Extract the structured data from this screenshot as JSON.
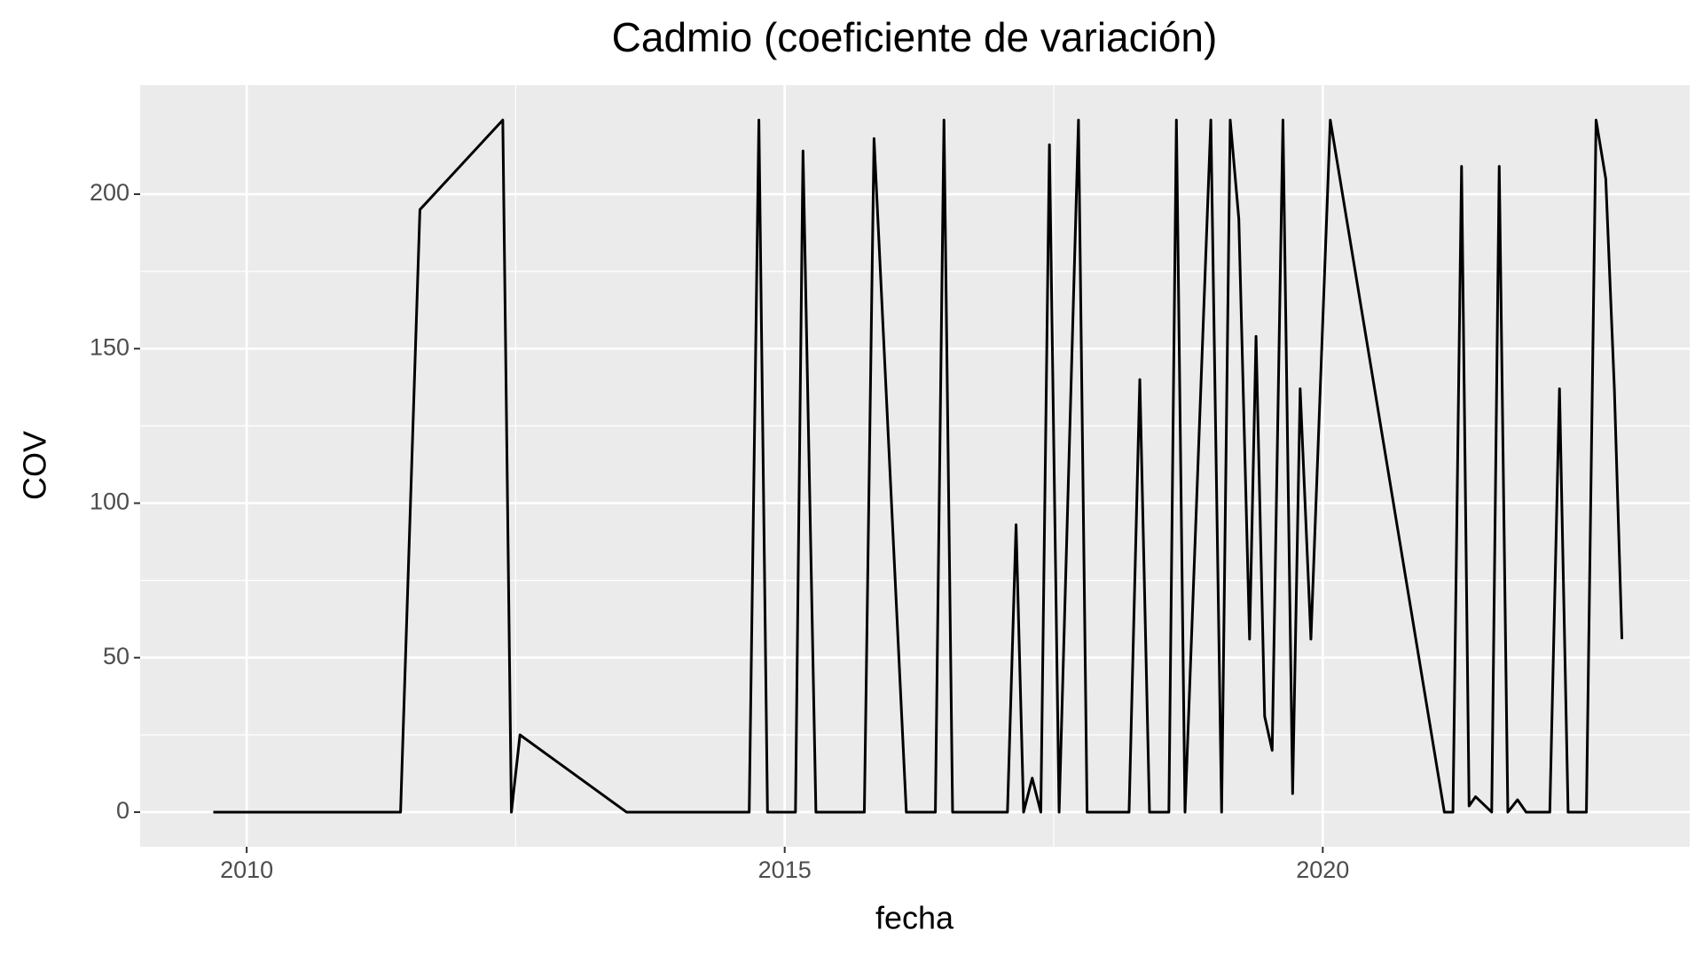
{
  "chart_data": {
    "type": "line",
    "title": "Cadmio (coeficiente de variación)",
    "x_label": "fecha",
    "y_label": "COV",
    "x": [
      2009.69,
      2011.43,
      2011.61,
      2012.38,
      2012.46,
      2012.54,
      2013.53,
      2014.67,
      2014.76,
      2014.84,
      2015.1,
      2015.17,
      2015.29,
      2015.74,
      2015.83,
      2016.13,
      2016.4,
      2016.48,
      2016.56,
      2017.07,
      2017.15,
      2017.22,
      2017.3,
      2017.38,
      2017.46,
      2017.55,
      2017.73,
      2017.81,
      2018.2,
      2018.3,
      2018.39,
      2018.57,
      2018.64,
      2018.72,
      2018.96,
      2019.06,
      2019.14,
      2019.22,
      2019.32,
      2019.38,
      2019.46,
      2019.53,
      2019.63,
      2019.72,
      2019.79,
      2019.89,
      2020.07,
      2021.13,
      2021.21,
      2021.29,
      2021.36,
      2021.42,
      2021.57,
      2021.64,
      2021.72,
      2021.81,
      2021.89,
      2022.11,
      2022.2,
      2022.28,
      2022.45,
      2022.54,
      2022.63,
      2022.71,
      2022.78
    ],
    "values": [
      0,
      0,
      195,
      224,
      0,
      25,
      0,
      0,
      224,
      0,
      0,
      214,
      0,
      0,
      218,
      0,
      0,
      224,
      0,
      0,
      93,
      0,
      11,
      0,
      216,
      0,
      224,
      0,
      0,
      140,
      0,
      0,
      224,
      0,
      224,
      0,
      224,
      192,
      56,
      154,
      31,
      20,
      224,
      6,
      137,
      56,
      224,
      0,
      0,
      209,
      2,
      5,
      0,
      209,
      0,
      4,
      0,
      0,
      137,
      0,
      0,
      224,
      205,
      137,
      56
    ],
    "color": "#000000",
    "xlim": [
      2009.01,
      2023.41
    ],
    "xticks": [
      2010,
      2015,
      2020
    ],
    "ylim": [
      -11.2,
      235.3
    ],
    "yticks": [
      0,
      50,
      100,
      150,
      200
    ],
    "grid": true
  }
}
